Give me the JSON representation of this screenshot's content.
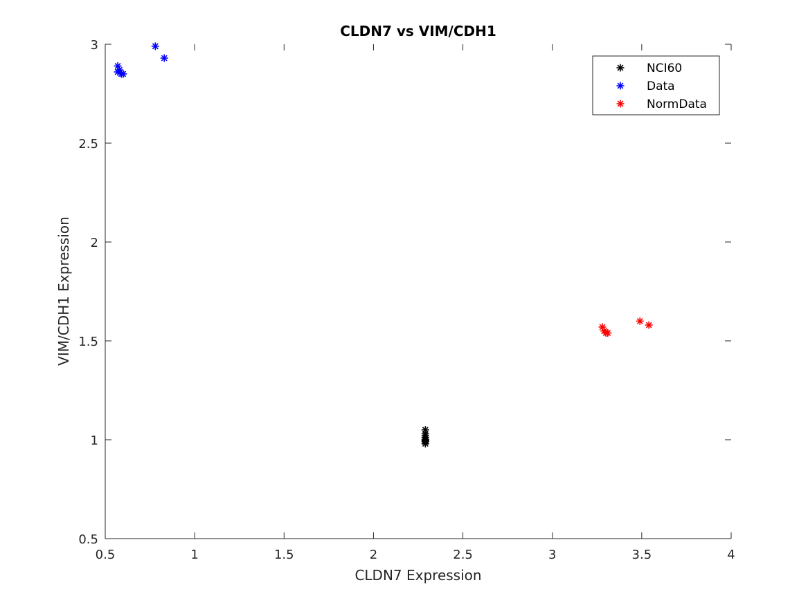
{
  "chart_data": {
    "type": "scatter",
    "title": "CLDN7 vs VIM/CDH1",
    "xlabel": "CLDN7 Expression",
    "ylabel": "VIM/CDH1 Expression",
    "xlim": [
      0.5,
      4
    ],
    "ylim": [
      0.5,
      3
    ],
    "xticks": [
      0.5,
      1,
      1.5,
      2,
      2.5,
      3,
      3.5,
      4
    ],
    "xtick_labels": [
      "0.5",
      "1",
      "1.5",
      "2",
      "2.5",
      "3",
      "3.5",
      "4"
    ],
    "yticks": [
      0.5,
      1,
      1.5,
      2,
      2.5,
      3
    ],
    "ytick_labels": [
      "0.5",
      "1",
      "1.5",
      "2",
      "2.5",
      "3"
    ],
    "grid": false,
    "legend_position": "top-right",
    "marker": "asterisk",
    "series": [
      {
        "name": "NCI60",
        "color": "#000000",
        "x": [
          2.29,
          2.29,
          2.29,
          2.29,
          2.29,
          2.29,
          2.29,
          2.29,
          2.29,
          2.29
        ],
        "y": [
          0.98,
          0.99,
          1.0,
          1.01,
          1.0,
          1.02,
          1.03,
          1.05,
          0.995,
          1.01
        ]
      },
      {
        "name": "Data",
        "color": "#0000ff",
        "x": [
          0.57,
          0.58,
          0.57,
          0.59,
          0.6,
          0.78,
          0.83
        ],
        "y": [
          2.89,
          2.87,
          2.86,
          2.85,
          2.85,
          2.99,
          2.93
        ]
      },
      {
        "name": "NormData",
        "color": "#ff0000",
        "x": [
          3.28,
          3.29,
          3.3,
          3.31,
          3.49,
          3.54
        ],
        "y": [
          1.57,
          1.55,
          1.54,
          1.54,
          1.6,
          1.58
        ]
      }
    ]
  }
}
